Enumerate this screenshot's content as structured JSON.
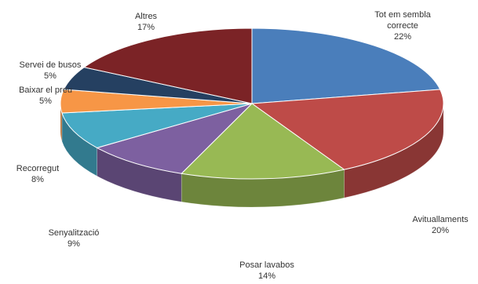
{
  "chart_data": {
    "type": "pie",
    "style": "3d",
    "unit": "%",
    "slices": [
      {
        "label": "Tot em sembla correcte",
        "label_lines": [
          "Tot em sembla",
          "correcte"
        ],
        "value": 22,
        "display_value": "22%",
        "color": "#4a7ebb"
      },
      {
        "label": "Avituallaments",
        "label_lines": [
          "Avituallaments"
        ],
        "value": 20,
        "display_value": "20%",
        "color": "#be4b48"
      },
      {
        "label": "Posar lavabos",
        "label_lines": [
          "Posar lavabos"
        ],
        "value": 14,
        "display_value": "14%",
        "color": "#98b954"
      },
      {
        "label": "Senyalització",
        "label_lines": [
          "Senyalització"
        ],
        "value": 9,
        "display_value": "9%",
        "color": "#7d60a0"
      },
      {
        "label": "Recorregut",
        "label_lines": [
          "Recorregut"
        ],
        "value": 8,
        "display_value": "8%",
        "color": "#46aac5"
      },
      {
        "label": "Baixar el preu",
        "label_lines": [
          "Baixar el preu"
        ],
        "value": 5,
        "display_value": "5%",
        "color": "#f79646"
      },
      {
        "label": "Servei de busos",
        "label_lines": [
          "Servei de busos"
        ],
        "value": 5,
        "display_value": "5%",
        "color": "#254061"
      },
      {
        "label": "Altres",
        "label_lines": [
          "Altres"
        ],
        "value": 17,
        "display_value": "17%",
        "color": "#7b2326"
      }
    ]
  }
}
